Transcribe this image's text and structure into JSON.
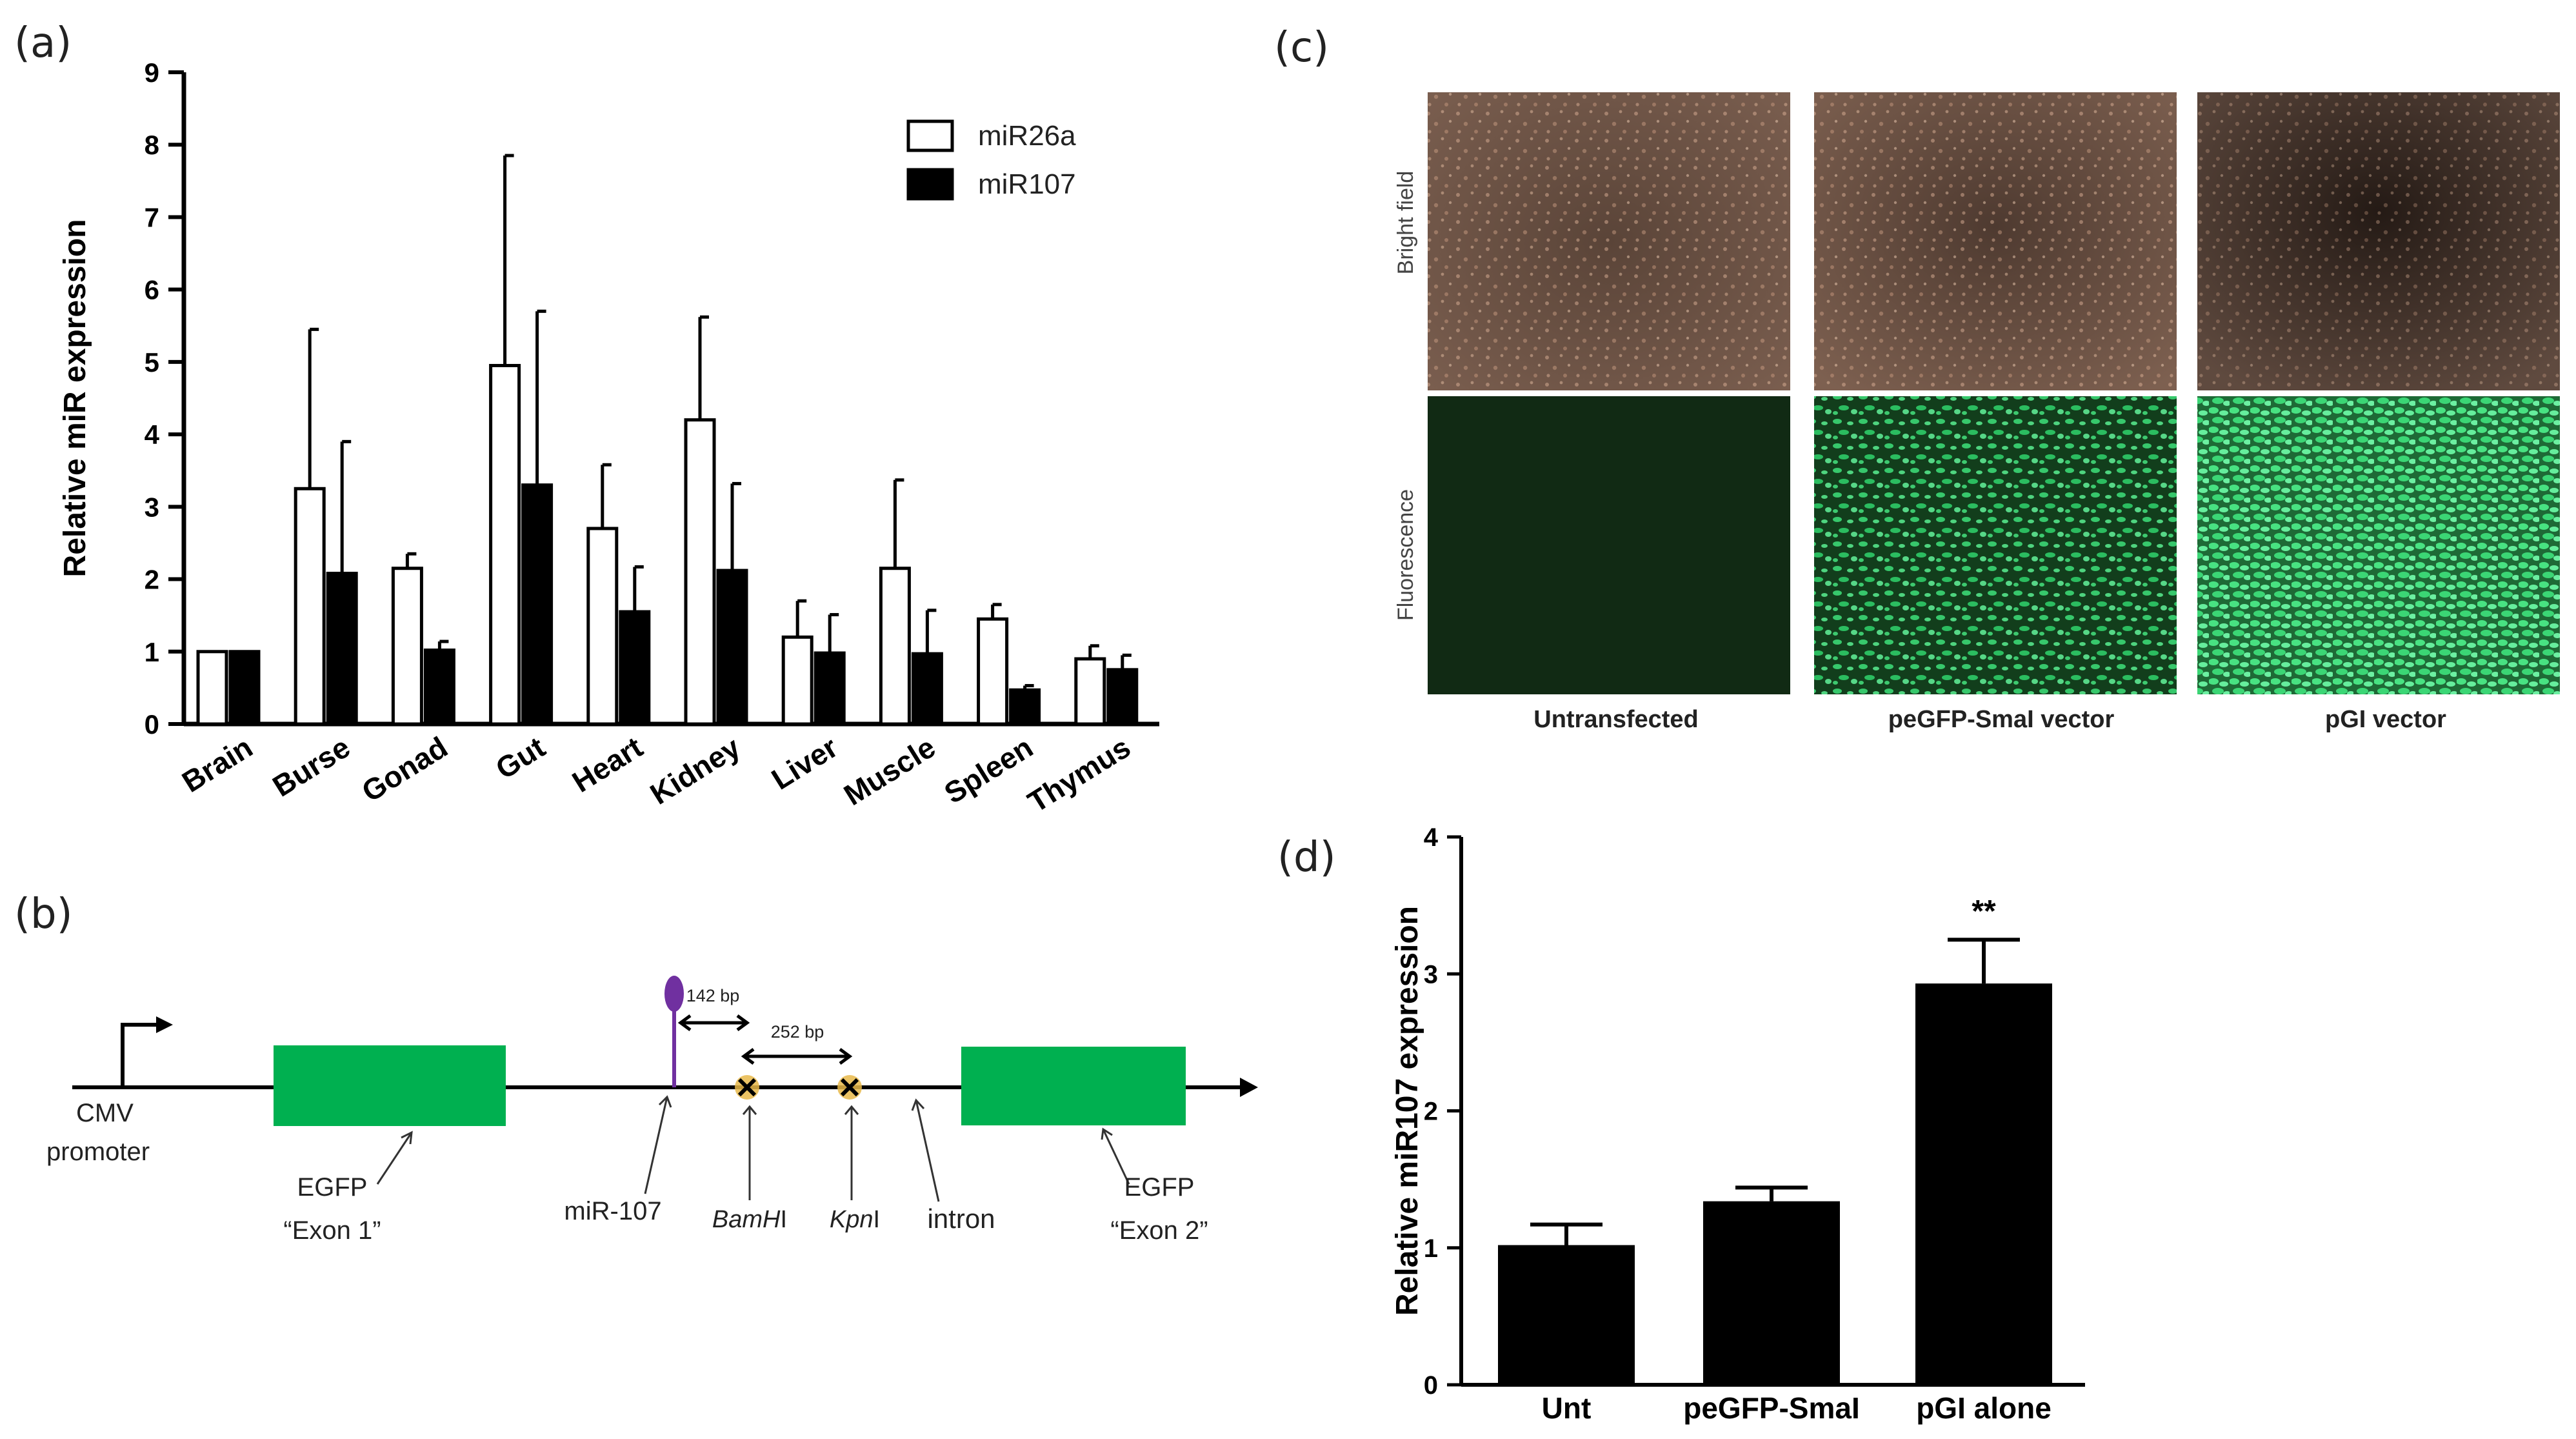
{
  "panel_labels": {
    "a": "(a)",
    "b": "(b)",
    "c": "(c)",
    "d": "(d)"
  },
  "chart_data": [
    {
      "panel": "a",
      "type": "bar",
      "title": "",
      "xlabel": "",
      "ylabel": "Relative miR expression",
      "ylim": [
        0,
        9
      ],
      "yticks": [
        "0",
        "1",
        "2",
        "3",
        "4",
        "5",
        "6",
        "7",
        "8",
        "9"
      ],
      "categories": [
        "Brain",
        "Burse",
        "Gonad",
        "Gut",
        "Heart",
        "Kidney",
        "Liver",
        "Muscle",
        "Spleen",
        "Thymus"
      ],
      "legend_position": "top-right",
      "series": [
        {
          "name": "miR26a",
          "fill": "#ffffff",
          "values": [
            1.0,
            3.25,
            2.15,
            4.95,
            2.7,
            4.2,
            1.2,
            2.15,
            1.45,
            0.9
          ],
          "errors": [
            0.0,
            2.2,
            0.2,
            2.9,
            0.88,
            1.42,
            0.5,
            1.22,
            0.2,
            0.18
          ]
        },
        {
          "name": "miR107",
          "fill": "#000000",
          "values": [
            1.0,
            2.08,
            1.02,
            3.3,
            1.55,
            2.12,
            0.98,
            0.97,
            0.47,
            0.75
          ],
          "errors": [
            0.0,
            1.82,
            0.12,
            2.4,
            0.62,
            1.2,
            0.53,
            0.6,
            0.06,
            0.2
          ]
        }
      ]
    },
    {
      "panel": "d",
      "type": "bar",
      "title": "",
      "xlabel": "",
      "ylabel": "Relative miR107 expression",
      "ylim": [
        0,
        4
      ],
      "yticks": [
        "0",
        "1",
        "2",
        "3",
        "4"
      ],
      "categories": [
        "Unt",
        "peGFP-SmaI",
        "pGI alone"
      ],
      "values": [
        1.02,
        1.34,
        2.93
      ],
      "errors": [
        0.15,
        0.1,
        0.32
      ],
      "annotations": [
        {
          "category": "pGI alone",
          "text": "**"
        }
      ]
    }
  ],
  "diagram_b": {
    "cmv_line1": "CMV",
    "cmv_line2": "promoter",
    "egfp1_line1": "EGFP",
    "egfp1_line2": "“Exon 1”",
    "egfp2_line1": "EGFP",
    "egfp2_line2": "“Exon 2”",
    "mir": "miR-107",
    "bam_italic": "BamH",
    "bam_roman": "I",
    "kpn_italic": "Kpn",
    "kpn_roman": "I",
    "intron": "intron",
    "dist1": "142 bp",
    "dist2": "252 bp",
    "colors": {
      "exon": "#00b050",
      "mir": "#7030a0",
      "site": "#e8b84a"
    }
  },
  "micrographs_c": {
    "row_labels": [
      "Bright field",
      "Fluorescence"
    ],
    "captions": [
      "Untransfected",
      "peGFP-SmaI vector",
      "pGI vector"
    ]
  }
}
